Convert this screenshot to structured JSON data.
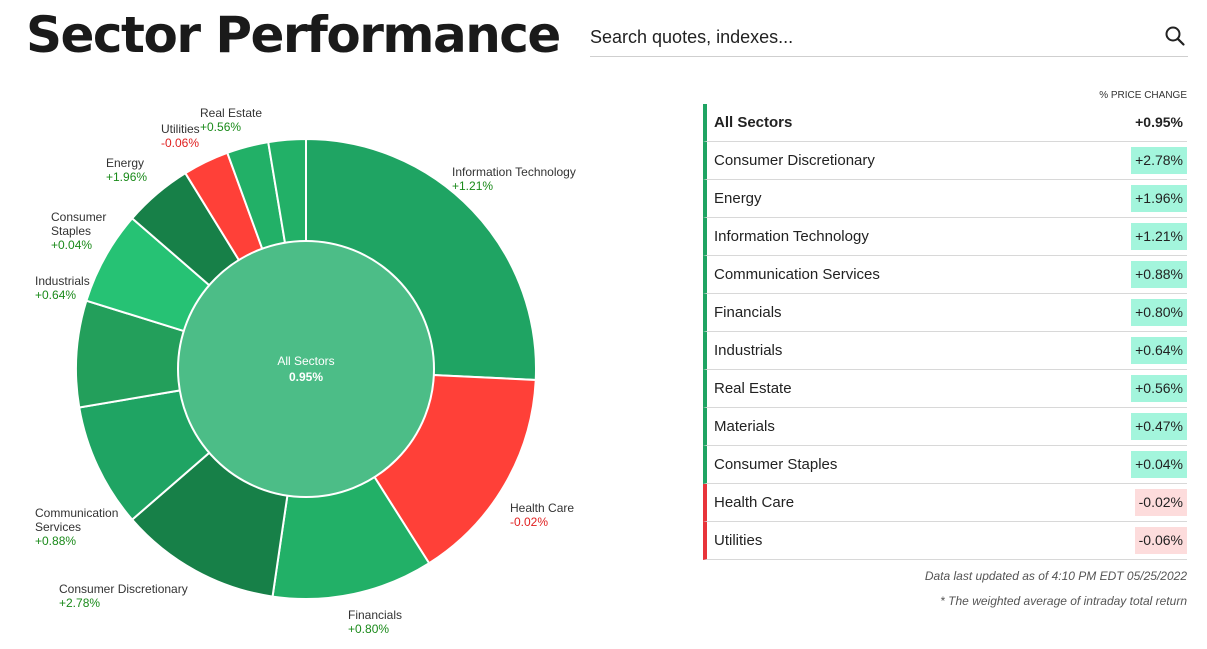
{
  "page": {
    "title": "Sector Performance"
  },
  "search": {
    "placeholder": "Search quotes, indexes..."
  },
  "icons": {
    "search": "search-icon"
  },
  "colors": {
    "positive_segments": [
      "#1fa463",
      "#22b067",
      "#26c274",
      "#178048",
      "#239f5b"
    ],
    "negative_segment": "#ff4038",
    "center": "#4cbd87",
    "positive_text": "#1a8a1a",
    "negative_text": "#e02020",
    "positive_highlight": "#a3f5dc",
    "negative_highlight": "#fddcdc"
  },
  "chart_data": {
    "type": "pie",
    "center_label": "All Sectors",
    "center_value": "0.95%",
    "slices": [
      {
        "name": "Information Technology",
        "value_label": "+1.21%",
        "share": 0.255,
        "sign": "pos"
      },
      {
        "name": "Health Care",
        "value_label": "-0.02%",
        "share": 0.151,
        "sign": "neg"
      },
      {
        "name": "Financials",
        "value_label": "+0.80%",
        "share": 0.112,
        "sign": "pos"
      },
      {
        "name": "Consumer Discretionary",
        "value_label": "+2.78%",
        "share": 0.112,
        "sign": "pos"
      },
      {
        "name": "Communication Services",
        "value_label": "+0.88%",
        "share": 0.086,
        "sign": "pos"
      },
      {
        "name": "Industrials",
        "value_label": "+0.64%",
        "share": 0.074,
        "sign": "pos"
      },
      {
        "name": "Consumer Staples",
        "value_label": "+0.04%",
        "share": 0.065,
        "sign": "pos"
      },
      {
        "name": "Energy",
        "value_label": "+1.96%",
        "share": 0.048,
        "sign": "pos"
      },
      {
        "name": "Utilities",
        "value_label": "-0.06%",
        "share": 0.032,
        "sign": "neg"
      },
      {
        "name": "Real Estate",
        "value_label": "+0.56%",
        "share": 0.029,
        "sign": "pos"
      },
      {
        "name": "Materials",
        "value_label": "",
        "share": 0.026,
        "sign": "pos"
      }
    ]
  },
  "table": {
    "column_header": "% PRICE CHANGE",
    "rows": [
      {
        "name": "All Sectors",
        "value": "+0.95%",
        "sign": "all"
      },
      {
        "name": "Consumer Discretionary",
        "value": "+2.78%",
        "sign": "pos"
      },
      {
        "name": "Energy",
        "value": "+1.96%",
        "sign": "pos"
      },
      {
        "name": "Information Technology",
        "value": "+1.21%",
        "sign": "pos"
      },
      {
        "name": "Communication Services",
        "value": "+0.88%",
        "sign": "pos"
      },
      {
        "name": "Financials",
        "value": "+0.80%",
        "sign": "pos"
      },
      {
        "name": "Industrials",
        "value": "+0.64%",
        "sign": "pos"
      },
      {
        "name": "Real Estate",
        "value": "+0.56%",
        "sign": "pos"
      },
      {
        "name": "Materials",
        "value": "+0.47%",
        "sign": "pos"
      },
      {
        "name": "Consumer Staples",
        "value": "+0.04%",
        "sign": "pos"
      },
      {
        "name": "Health Care",
        "value": "-0.02%",
        "sign": "neg"
      },
      {
        "name": "Utilities",
        "value": "-0.06%",
        "sign": "neg"
      }
    ],
    "footnote_updated": "Data last updated as of 4:10 PM EDT 05/25/2022",
    "footnote_note": "* The weighted average of intraday total return"
  }
}
